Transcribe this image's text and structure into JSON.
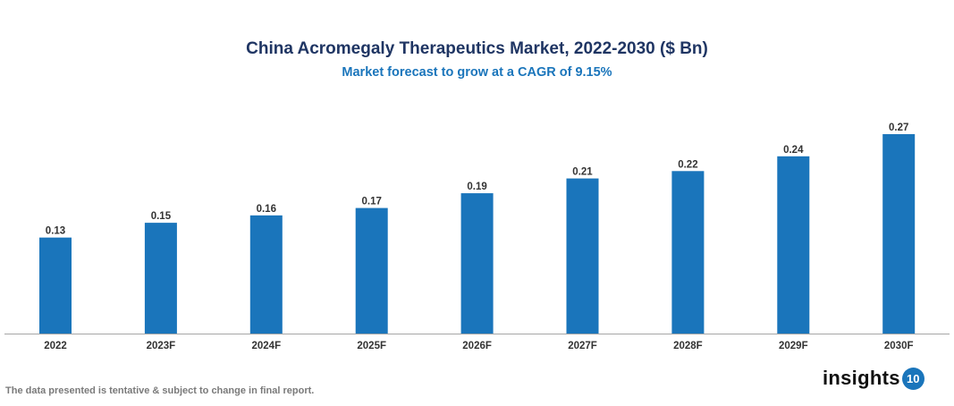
{
  "chart_data": {
    "type": "bar",
    "title": "China Acromegaly Therapeutics Market, 2022-2030 ($ Bn)",
    "subtitle": "Market forecast to grow at a CAGR of 9.15%",
    "categories": [
      "2022",
      "2023F",
      "2024F",
      "2025F",
      "2026F",
      "2027F",
      "2028F",
      "2029F",
      "2030F"
    ],
    "values": [
      0.13,
      0.15,
      0.16,
      0.17,
      0.19,
      0.21,
      0.22,
      0.24,
      0.27
    ],
    "value_labels": [
      "0.13",
      "0.15",
      "0.16",
      "0.17",
      "0.19",
      "0.21",
      "0.22",
      "0.24",
      "0.27"
    ],
    "xlabel": "",
    "ylabel": "",
    "ylim": [
      0,
      0.27
    ],
    "grid": false,
    "legend": "none",
    "bar_color": "#1a75bb"
  },
  "footer": {
    "note": "The data presented is tentative & subject to change in final report.",
    "logo_text": "insights",
    "logo_badge": "10"
  }
}
